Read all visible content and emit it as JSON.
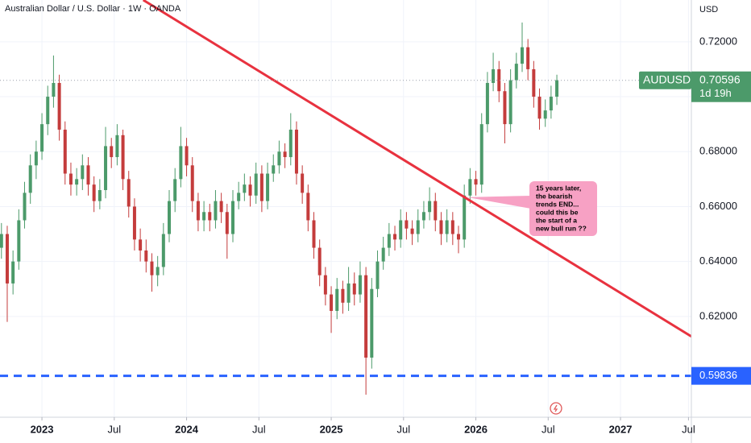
{
  "header": {
    "title": "Australian Dollar / U.S. Dollar · 1W · OANDA",
    "currency": "USD"
  },
  "chart_data": {
    "type": "candlestick",
    "x": [
      2022.72,
      2022.76,
      2022.8,
      2022.84,
      2022.88,
      2022.92,
      2022.96,
      2023.0,
      2023.04,
      2023.08,
      2023.12,
      2023.16,
      2023.2,
      2023.24,
      2023.28,
      2023.32,
      2023.36,
      2023.4,
      2023.44,
      2023.48,
      2023.52,
      2023.56,
      2023.6,
      2023.64,
      2023.68,
      2023.72,
      2023.76,
      2023.8,
      2023.84,
      2023.88,
      2023.92,
      2023.96,
      2024.0,
      2024.04,
      2024.08,
      2024.12,
      2024.16,
      2024.2,
      2024.24,
      2024.28,
      2024.32,
      2024.36,
      2024.4,
      2024.44,
      2024.48,
      2024.52,
      2024.56,
      2024.6,
      2024.64,
      2024.68,
      2024.72,
      2024.76,
      2024.8,
      2024.84,
      2024.88,
      2024.92,
      2024.96,
      2025.0,
      2025.04,
      2025.08,
      2025.12,
      2025.16,
      2025.2,
      2025.24,
      2025.28,
      2025.32,
      2025.36,
      2025.4,
      2025.44,
      2025.48,
      2025.52,
      2025.56,
      2025.6,
      2025.64,
      2025.68,
      2025.72,
      2025.76,
      2025.8,
      2025.84,
      2025.88,
      2025.92,
      2025.96,
      2026.0,
      2026.04,
      2026.08,
      2026.12,
      2026.16,
      2026.2,
      2026.24,
      2026.28,
      2026.32,
      2026.36,
      2026.4,
      2026.44,
      2026.48,
      2026.52,
      2026.56
    ],
    "ohlc": [
      [
        0.645,
        0.654,
        0.641,
        0.65
      ],
      [
        0.65,
        0.653,
        0.618,
        0.632
      ],
      [
        0.632,
        0.644,
        0.628,
        0.64
      ],
      [
        0.64,
        0.659,
        0.637,
        0.655
      ],
      [
        0.655,
        0.669,
        0.652,
        0.665
      ],
      [
        0.665,
        0.679,
        0.661,
        0.675
      ],
      [
        0.675,
        0.684,
        0.67,
        0.68
      ],
      [
        0.68,
        0.694,
        0.677,
        0.69
      ],
      [
        0.69,
        0.704,
        0.686,
        0.7
      ],
      [
        0.7,
        0.715,
        0.696,
        0.705
      ],
      [
        0.705,
        0.708,
        0.684,
        0.688
      ],
      [
        0.688,
        0.691,
        0.668,
        0.672
      ],
      [
        0.672,
        0.676,
        0.664,
        0.668
      ],
      [
        0.668,
        0.674,
        0.664,
        0.67
      ],
      [
        0.67,
        0.679,
        0.666,
        0.675
      ],
      [
        0.675,
        0.678,
        0.664,
        0.668
      ],
      [
        0.668,
        0.671,
        0.658,
        0.662
      ],
      [
        0.662,
        0.67,
        0.659,
        0.666
      ],
      [
        0.666,
        0.689,
        0.663,
        0.682
      ],
      [
        0.682,
        0.685,
        0.674,
        0.678
      ],
      [
        0.678,
        0.69,
        0.675,
        0.686
      ],
      [
        0.686,
        0.688,
        0.666,
        0.67
      ],
      [
        0.67,
        0.673,
        0.656,
        0.66
      ],
      [
        0.66,
        0.663,
        0.644,
        0.648
      ],
      [
        0.648,
        0.652,
        0.64,
        0.644
      ],
      [
        0.644,
        0.648,
        0.636,
        0.64
      ],
      [
        0.64,
        0.643,
        0.629,
        0.635
      ],
      [
        0.635,
        0.642,
        0.631,
        0.638
      ],
      [
        0.638,
        0.654,
        0.635,
        0.65
      ],
      [
        0.65,
        0.666,
        0.647,
        0.662
      ],
      [
        0.662,
        0.674,
        0.658,
        0.67
      ],
      [
        0.67,
        0.689,
        0.667,
        0.682
      ],
      [
        0.682,
        0.685,
        0.671,
        0.675
      ],
      [
        0.675,
        0.678,
        0.658,
        0.662
      ],
      [
        0.662,
        0.665,
        0.651,
        0.655
      ],
      [
        0.655,
        0.662,
        0.651,
        0.658
      ],
      [
        0.658,
        0.661,
        0.651,
        0.655
      ],
      [
        0.655,
        0.666,
        0.652,
        0.662
      ],
      [
        0.662,
        0.665,
        0.654,
        0.658
      ],
      [
        0.658,
        0.661,
        0.641,
        0.65
      ],
      [
        0.65,
        0.666,
        0.647,
        0.662
      ],
      [
        0.662,
        0.669,
        0.659,
        0.665
      ],
      [
        0.665,
        0.672,
        0.662,
        0.668
      ],
      [
        0.668,
        0.671,
        0.66,
        0.664
      ],
      [
        0.664,
        0.676,
        0.661,
        0.672
      ],
      [
        0.672,
        0.675,
        0.658,
        0.662
      ],
      [
        0.662,
        0.676,
        0.659,
        0.672
      ],
      [
        0.672,
        0.679,
        0.669,
        0.675
      ],
      [
        0.675,
        0.684,
        0.672,
        0.68
      ],
      [
        0.68,
        0.683,
        0.674,
        0.678
      ],
      [
        0.678,
        0.694,
        0.675,
        0.688
      ],
      [
        0.688,
        0.691,
        0.668,
        0.672
      ],
      [
        0.672,
        0.675,
        0.661,
        0.665
      ],
      [
        0.665,
        0.668,
        0.651,
        0.655
      ],
      [
        0.655,
        0.658,
        0.641,
        0.645
      ],
      [
        0.645,
        0.648,
        0.631,
        0.635
      ],
      [
        0.635,
        0.638,
        0.624,
        0.628
      ],
      [
        0.628,
        0.631,
        0.614,
        0.622
      ],
      [
        0.622,
        0.634,
        0.619,
        0.63
      ],
      [
        0.63,
        0.633,
        0.621,
        0.625
      ],
      [
        0.625,
        0.638,
        0.622,
        0.632
      ],
      [
        0.632,
        0.636,
        0.624,
        0.628
      ],
      [
        0.628,
        0.64,
        0.625,
        0.635
      ],
      [
        0.635,
        0.638,
        0.5915,
        0.605
      ],
      [
        0.605,
        0.634,
        0.601,
        0.63
      ],
      [
        0.63,
        0.644,
        0.627,
        0.64
      ],
      [
        0.64,
        0.649,
        0.637,
        0.645
      ],
      [
        0.645,
        0.654,
        0.642,
        0.65
      ],
      [
        0.65,
        0.653,
        0.644,
        0.648
      ],
      [
        0.648,
        0.659,
        0.645,
        0.655
      ],
      [
        0.655,
        0.658,
        0.648,
        0.652
      ],
      [
        0.652,
        0.655,
        0.646,
        0.65
      ],
      [
        0.65,
        0.659,
        0.647,
        0.655
      ],
      [
        0.655,
        0.662,
        0.652,
        0.658
      ],
      [
        0.658,
        0.667,
        0.655,
        0.662
      ],
      [
        0.662,
        0.665,
        0.651,
        0.655
      ],
      [
        0.655,
        0.658,
        0.646,
        0.65
      ],
      [
        0.65,
        0.659,
        0.647,
        0.655
      ],
      [
        0.655,
        0.658,
        0.646,
        0.65
      ],
      [
        0.65,
        0.653,
        0.643,
        0.648
      ],
      [
        0.648,
        0.668,
        0.645,
        0.664
      ],
      [
        0.664,
        0.674,
        0.661,
        0.67
      ],
      [
        0.67,
        0.673,
        0.664,
        0.668
      ],
      [
        0.668,
        0.694,
        0.665,
        0.69
      ],
      [
        0.69,
        0.709,
        0.687,
        0.705
      ],
      [
        0.705,
        0.716,
        0.702,
        0.71
      ],
      [
        0.71,
        0.713,
        0.698,
        0.702
      ],
      [
        0.702,
        0.705,
        0.683,
        0.69
      ],
      [
        0.69,
        0.71,
        0.687,
        0.706
      ],
      [
        0.706,
        0.716,
        0.703,
        0.712
      ],
      [
        0.712,
        0.727,
        0.709,
        0.718
      ],
      [
        0.718,
        0.721,
        0.706,
        0.71
      ],
      [
        0.71,
        0.713,
        0.696,
        0.7
      ],
      [
        0.7,
        0.703,
        0.688,
        0.692
      ],
      [
        0.692,
        0.699,
        0.689,
        0.695
      ],
      [
        0.695,
        0.704,
        0.692,
        0.7
      ],
      [
        0.7,
        0.708,
        0.697,
        0.706
      ]
    ],
    "up_color": "#4c9a6a",
    "down_color": "#c43c3c",
    "xlim": [
      2022.71,
      2027.49
    ],
    "ylim": [
      0.5833,
      0.7352
    ],
    "xticks": [
      {
        "value": 2023,
        "label": "2023"
      },
      {
        "value": 2023.5,
        "label": "Jul"
      },
      {
        "value": 2024,
        "label": "2024"
      },
      {
        "value": 2024.5,
        "label": "Jul"
      },
      {
        "value": 2025,
        "label": "2025"
      },
      {
        "value": 2025.5,
        "label": "Jul"
      },
      {
        "value": 2026,
        "label": "2026"
      },
      {
        "value": 2026.5,
        "label": "Jul"
      },
      {
        "value": 2027,
        "label": "2027"
      },
      {
        "value": 2027.47,
        "label": "Jul"
      }
    ],
    "yticks": [
      {
        "value": 0.72,
        "label": "0.72000"
      },
      {
        "value": 0.7,
        "label": "0.70000"
      },
      {
        "value": 0.68,
        "label": "0.68000"
      },
      {
        "value": 0.66,
        "label": "0.66000"
      },
      {
        "value": 0.64,
        "label": "0.64000"
      },
      {
        "value": 0.62,
        "label": "0.62000"
      }
    ],
    "grid": true,
    "trendline": {
      "color": "#e8323f",
      "points": [
        [
          2023.7,
          0.7352
        ],
        [
          2027.49,
          0.6127
        ]
      ]
    },
    "support": {
      "value": 0.59836,
      "color": "#2962ff"
    },
    "last_price": {
      "symbol": "AUDUSD",
      "value": 0.70596,
      "countdown": "1d 19h"
    },
    "annotation": {
      "lines": [
        "15 years later,",
        "the bearish",
        "trends END...",
        "could this be",
        "the start of a",
        "new bull run ??"
      ],
      "anchor": [
        2025.94,
        0.6634
      ]
    }
  }
}
